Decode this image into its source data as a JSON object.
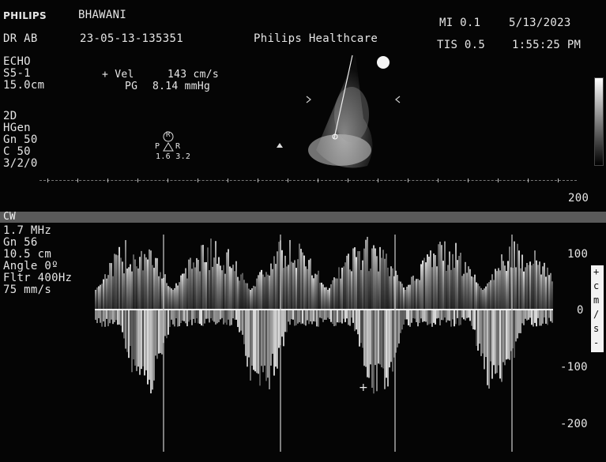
{
  "header": {
    "brand": "PHILIPS",
    "patient": "BHAWANI",
    "doctor": "DR AB",
    "study_id": "23-05-13-135351",
    "institution": "Philips Healthcare",
    "mi": "MI 0.1",
    "tis": "TIS 0.5",
    "date": "5/13/2023",
    "time": "1:55:25 PM"
  },
  "echo_panel": {
    "mode": "ECHO",
    "probe": "S5-1",
    "depth": "15.0cm",
    "vel_label": "+ Vel",
    "vel_value": "143 cm/s",
    "pg_label": "PG",
    "pg_value": "8.14 mmHg"
  },
  "twod_panel": {
    "mode": "2D",
    "preset": "HGen",
    "gain": "Gn 50",
    "compress": "C 50",
    "settings": "3/2/0",
    "orientation_letter": "R",
    "orientation_left": "P",
    "orientation_right": "R",
    "scale_values": "1.6 3.2"
  },
  "doppler_panel": {
    "mode": "CW",
    "freq": "1.7 MHz",
    "gain": "Gn 56",
    "depth": "10.5 cm",
    "angle": "Angle 0º",
    "filter": "Fltr 400Hz",
    "sweep": "75 mm/s"
  },
  "velocity_scale": {
    "top": "200",
    "upper": "100",
    "zero": "0",
    "lower": "-100",
    "bottom": "-200",
    "units": [
      "+",
      "c",
      "m",
      "/",
      "s",
      "-"
    ]
  },
  "colors": {
    "background": "#050505",
    "text": "#e6e6e6",
    "band": "#5a5a5a"
  }
}
